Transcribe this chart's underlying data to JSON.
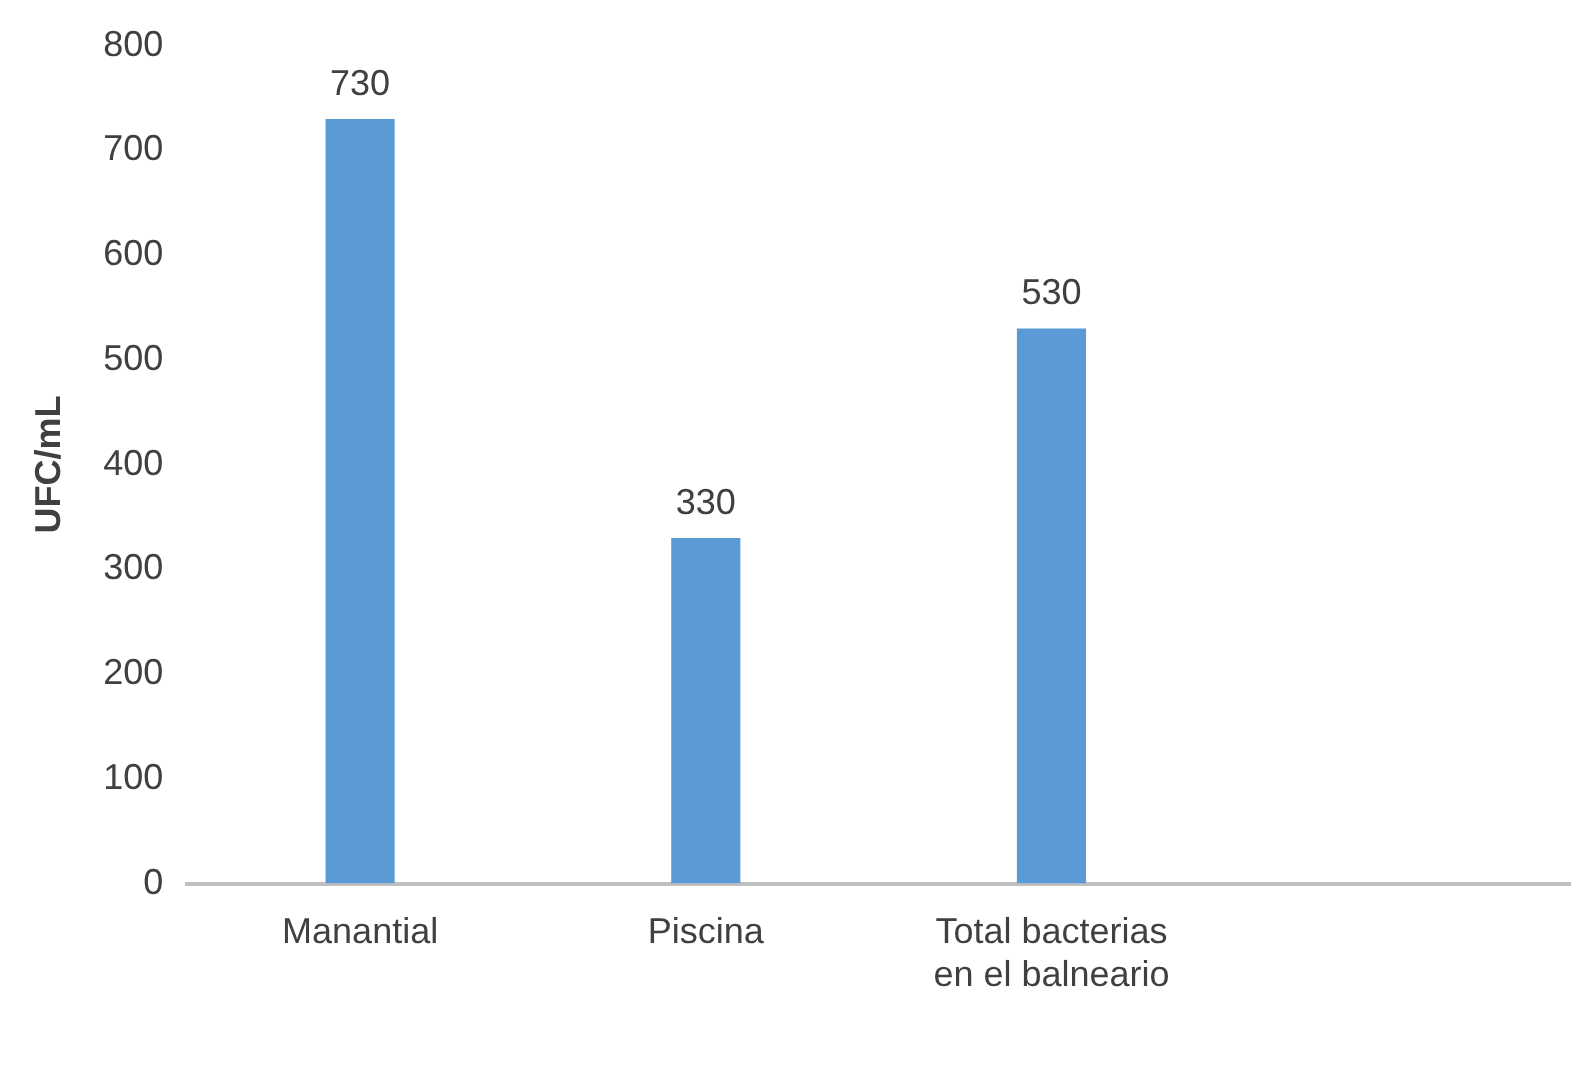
{
  "chart_data": {
    "type": "bar",
    "ylabel": "UFC/mL",
    "categories": [
      "Manantial",
      "Piscina",
      "Total bacterias en el balneario",
      null
    ],
    "values": [
      730,
      330,
      530,
      null
    ],
    "color": "#5b9bd5",
    "ylim": [
      0,
      800
    ],
    "yticks": [
      0,
      100,
      200,
      300,
      400,
      500,
      600,
      700,
      800
    ],
    "grid": false,
    "legend": false,
    "data_labels": true
  }
}
